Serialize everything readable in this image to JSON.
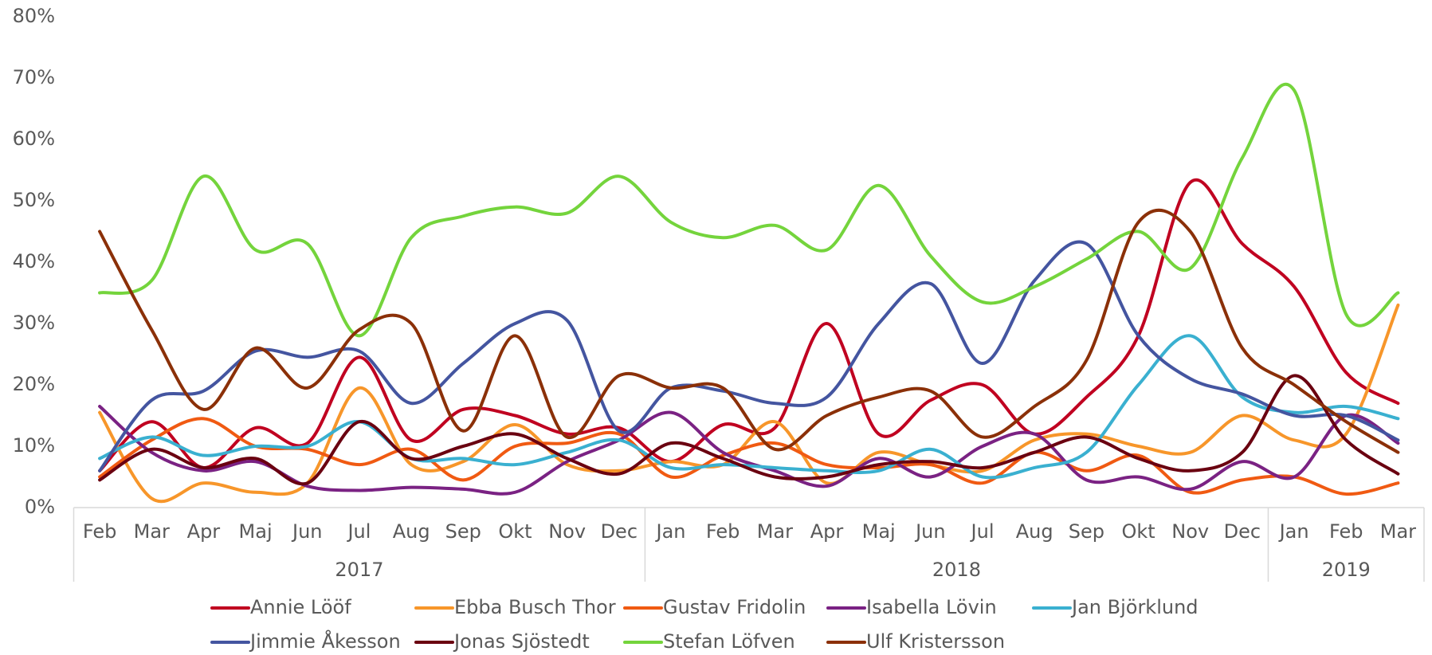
{
  "chart_data": {
    "type": "line",
    "categories": [
      "Feb",
      "Mar",
      "Apr",
      "Maj",
      "Jun",
      "Jul",
      "Aug",
      "Sep",
      "Okt",
      "Nov",
      "Dec",
      "Jan",
      "Feb",
      "Mar",
      "Apr",
      "Maj",
      "Jun",
      "Jul",
      "Aug",
      "Sep",
      "Okt",
      "Nov",
      "Dec",
      "Jan",
      "Feb",
      "Mar"
    ],
    "category_groups": [
      {
        "label": "2017",
        "span": 11
      },
      {
        "label": "2018",
        "span": 12
      },
      {
        "label": "2019",
        "span": 3
      }
    ],
    "ylim": [
      0,
      80
    ],
    "yticks": [
      {
        "value": 0,
        "label": "0%"
      },
      {
        "value": 10,
        "label": "10%"
      },
      {
        "value": 20,
        "label": "20%"
      },
      {
        "value": 30,
        "label": "30%"
      },
      {
        "value": 40,
        "label": "40%"
      },
      {
        "value": 50,
        "label": "50%"
      },
      {
        "value": 60,
        "label": "60%"
      },
      {
        "value": 70,
        "label": "70%"
      },
      {
        "value": 80,
        "label": "80%"
      }
    ],
    "grid": false,
    "smooth": true,
    "legend": "bottom",
    "series": [
      {
        "name": "Annie Lööf",
        "color": "#c00020",
        "values": [
          6,
          14,
          6.5,
          13,
          10.5,
          24.5,
          11,
          16,
          15,
          12,
          13,
          7.5,
          13.5,
          13,
          30,
          12,
          17.5,
          20,
          12,
          18,
          28,
          53,
          43,
          36,
          22,
          17
        ]
      },
      {
        "name": "Ebba Busch Thor",
        "color": "#f7962a",
        "values": [
          15.5,
          1.5,
          4,
          2.5,
          4,
          19.5,
          7,
          7.5,
          13.5,
          7,
          6,
          7.5,
          7,
          14,
          4,
          9,
          7,
          6,
          11,
          12,
          10,
          9,
          15,
          11,
          12,
          33
        ]
      },
      {
        "name": "Gustav Fridolin",
        "color": "#f05a12",
        "values": [
          5,
          11,
          14.5,
          10,
          9.5,
          7,
          9.5,
          4.5,
          10,
          10.5,
          12,
          5,
          8.5,
          10.5,
          7,
          6.5,
          7,
          4,
          9,
          6,
          8.5,
          2.5,
          4.5,
          5,
          2.2,
          4
        ]
      },
      {
        "name": "Isabella Lövin",
        "color": "#7a2283",
        "values": [
          16.5,
          9,
          6,
          7.5,
          3.5,
          2.8,
          3.3,
          3,
          2.5,
          7.5,
          11,
          15.5,
          9,
          6,
          3.5,
          8,
          5,
          10,
          12,
          4.5,
          5,
          3,
          7.5,
          5,
          15,
          10.5
        ]
      },
      {
        "name": "Jan Björklund",
        "color": "#3ab0d0",
        "values": [
          8,
          11.5,
          8.5,
          10,
          10,
          14,
          8,
          8,
          7,
          9,
          11,
          6.5,
          7,
          6.5,
          6,
          6,
          9.5,
          5,
          6.5,
          9,
          20,
          28,
          18,
          15.5,
          16.5,
          14.5
        ]
      },
      {
        "name": "Jimmie Åkesson",
        "color": "#4455a0",
        "values": [
          6,
          17.5,
          19,
          25.5,
          24.5,
          25.5,
          17,
          23.5,
          30,
          30.5,
          12.5,
          19.5,
          19,
          17,
          18,
          30,
          36.5,
          23.5,
          37,
          43,
          28,
          21,
          18.5,
          15,
          15,
          11
        ]
      },
      {
        "name": "Jonas Sjöstedt",
        "color": "#6a0010",
        "values": [
          4.5,
          9.5,
          6.5,
          8,
          4,
          14,
          8,
          10,
          12,
          8,
          5.5,
          10.5,
          8,
          5,
          5,
          7,
          7.5,
          6.5,
          9,
          11.5,
          8,
          6,
          9,
          21.5,
          11,
          5.5
        ]
      },
      {
        "name": "Stefan Löfven",
        "color": "#74d43c",
        "values": [
          35,
          37,
          54,
          42,
          43,
          28,
          44,
          47.5,
          49,
          48,
          54,
          46.5,
          44,
          46,
          42,
          52.5,
          41,
          33.5,
          36,
          40.5,
          45,
          39,
          57,
          68,
          31.5,
          35
        ]
      },
      {
        "name": "Ulf Kristersson",
        "color": "#8b3008",
        "values": [
          45,
          29,
          16,
          26,
          19.5,
          29,
          30,
          12.5,
          28,
          11.5,
          21.5,
          19.5,
          19.5,
          9.5,
          15,
          18,
          19,
          11.5,
          16.5,
          24,
          46.5,
          45,
          26,
          20,
          14,
          9
        ]
      }
    ]
  }
}
